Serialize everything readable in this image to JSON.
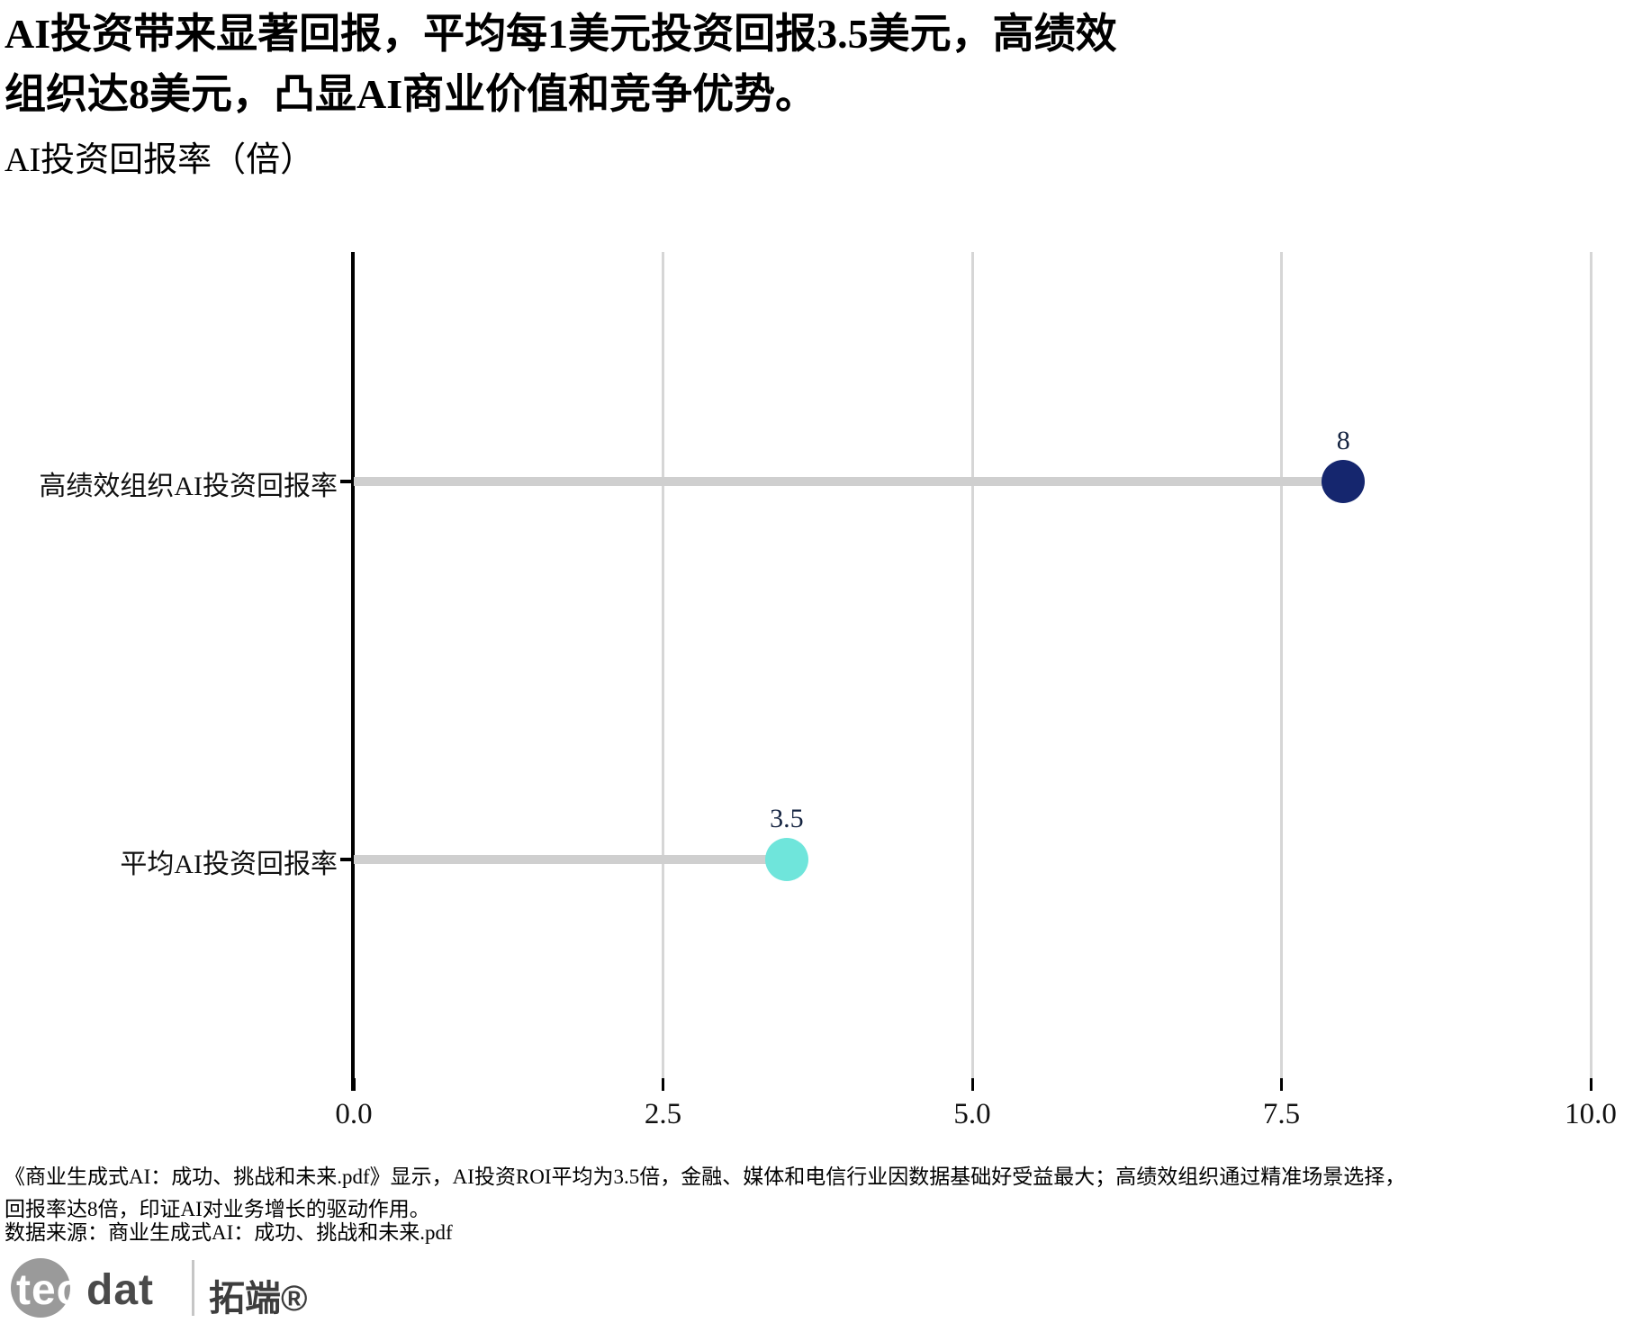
{
  "headline_lines": [
    "AI投资带来显著回报，平均每1美元投资回报3.5美元，高绩效",
    "组织达8美元，凸显AI商业价值和竞争优势。"
  ],
  "chart_data": {
    "type": "bar",
    "subtype": "lollipop-horizontal",
    "title": "AI投资回报率（倍）",
    "categories": [
      "高绩效组织AI投资回报率",
      "平均AI投资回报率"
    ],
    "values": [
      8,
      3.5
    ],
    "value_labels": [
      "8",
      "3.5"
    ],
    "point_colors": [
      "#15266e",
      "#6fe5db"
    ],
    "xlim": [
      0,
      10
    ],
    "x_ticks": [
      0.0,
      2.5,
      5.0,
      7.5,
      10.0
    ],
    "x_tick_labels": [
      "0.0",
      "2.5",
      "5.0",
      "7.5",
      "10.0"
    ],
    "grid": "vertical-gridlines-on",
    "legend": "none",
    "stem_color": "#cfcfcf",
    "gridline_color": "#d6d6d6",
    "axis_color": "#000000",
    "value_label_color": "#152441"
  },
  "footnote_lines": [
    "《商业生成式AI：成功、挑战和未来.pdf》显示，AI投资ROI平均为3.5倍，金融、媒体和电信行业因数据基础好受益最大；高绩效组织通过精准场景选择，",
    "回报率达8倍，印证AI对业务增长的驱动作用。"
  ],
  "source": "数据来源：商业生成式AI：成功、挑战和未来.pdf",
  "logo": {
    "tec": "tec",
    "dat": "dat",
    "cn": "拓端®"
  }
}
